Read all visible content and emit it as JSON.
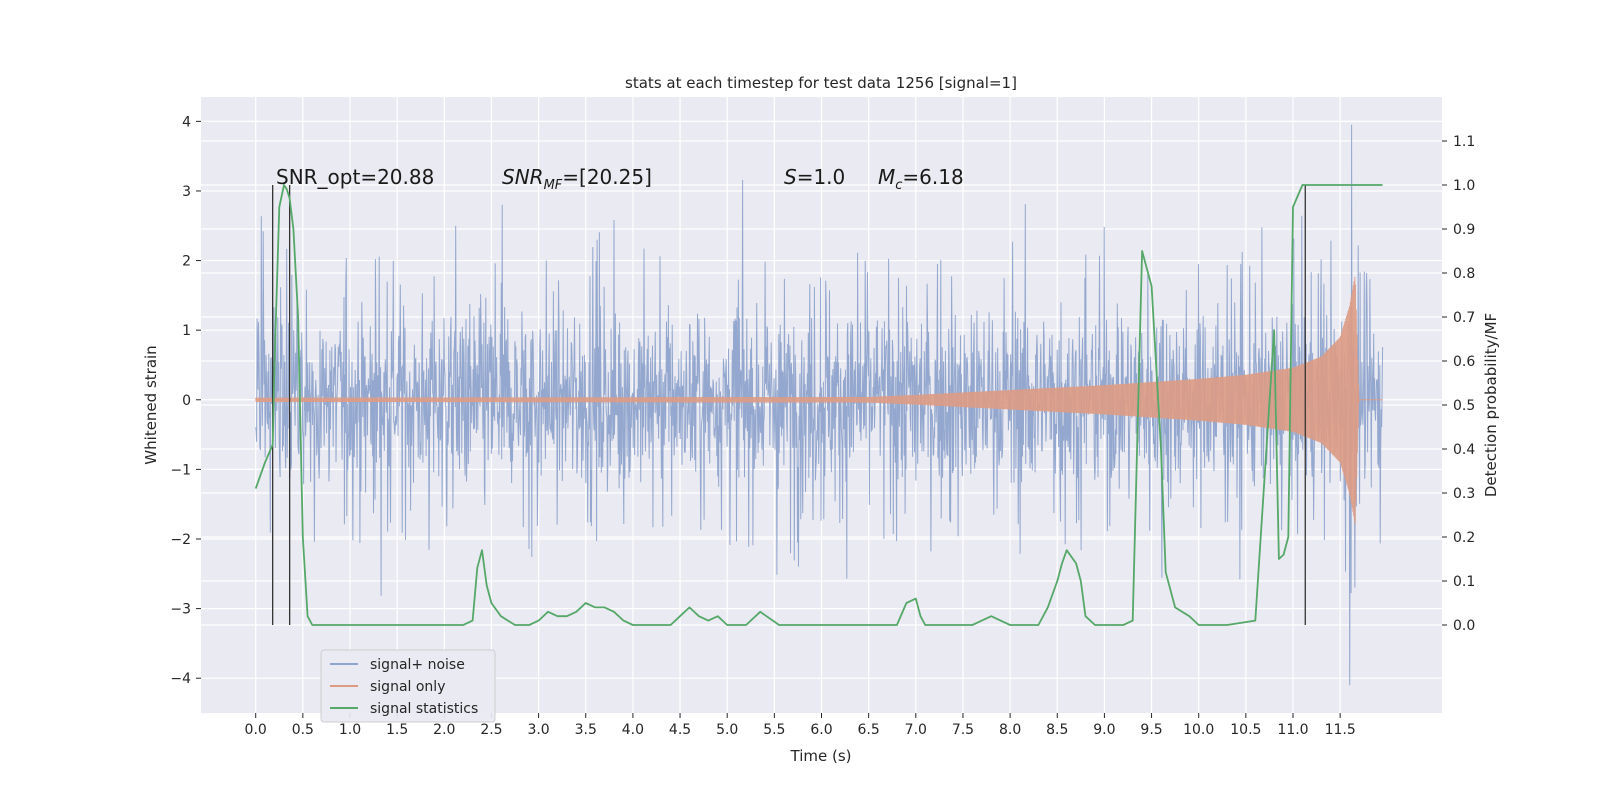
{
  "chart_data": {
    "type": "line",
    "title": "stats at each timestep for test data 1256 [signal=1]",
    "xlabel": "Time (s)",
    "ylabel": "Whitened strain",
    "y2label": "Detection probability/MF",
    "xlim": [
      -0.58,
      12.58
    ],
    "ylim": [
      -4.5,
      4.35
    ],
    "y2lim": [
      -0.2,
      1.2
    ],
    "xticks": [
      "0.0",
      "0.5",
      "1.0",
      "1.5",
      "2.0",
      "2.5",
      "3.0",
      "3.5",
      "4.0",
      "4.5",
      "5.0",
      "5.5",
      "6.0",
      "6.5",
      "7.0",
      "7.5",
      "8.0",
      "8.5",
      "9.0",
      "9.5",
      "10.0",
      "10.5",
      "11.0",
      "11.5"
    ],
    "xtick_values": [
      0,
      0.5,
      1,
      1.5,
      2,
      2.5,
      3,
      3.5,
      4,
      4.5,
      5,
      5.5,
      6,
      6.5,
      7,
      7.5,
      8,
      8.5,
      9,
      9.5,
      10,
      10.5,
      11,
      11.5
    ],
    "yticks": [
      "−4",
      "−3",
      "−2",
      "−1",
      "0",
      "1",
      "2",
      "3",
      "4"
    ],
    "ytick_values": [
      -4,
      -3,
      -2,
      -1,
      0,
      1,
      2,
      3,
      4
    ],
    "y2ticks": [
      "0.0",
      "0.1",
      "0.2",
      "0.3",
      "0.4",
      "0.5",
      "0.6",
      "0.7",
      "0.8",
      "0.9",
      "1.0",
      "1.1"
    ],
    "y2tick_values": [
      0,
      0.1,
      0.2,
      0.3,
      0.4,
      0.5,
      0.6,
      0.7,
      0.8,
      0.9,
      1.0,
      1.1
    ],
    "grid": true,
    "legend_position": "lower-left",
    "annotations": {
      "snr_opt": "SNR_opt=20.88",
      "snr_mf": "SNR",
      "snr_mf_sub": "MF",
      "snr_mf_value": "=[20.25]",
      "s_label": "S",
      "s_value": "=1.0",
      "mc_label": "M",
      "mc_sub": "c",
      "mc_value": "=6.18"
    },
    "series": [
      {
        "name": "signal+ noise",
        "color": "#8fa4cc",
        "axis": "left",
        "x_range": [
          0.0,
          11.95
        ],
        "note_values": "dense noise; typical band -2.0 to 1.8, peaks to 3.95 near 11.62 and -4.1 near 11.6"
      },
      {
        "name": "signal only",
        "color": "#dd9b84",
        "axis": "left",
        "envelope": {
          "t": [
            0.0,
            6.5,
            7.0,
            8.0,
            9.0,
            10.0,
            10.5,
            11.0,
            11.3,
            11.5,
            11.6,
            11.66,
            11.7,
            11.95
          ],
          "amp": [
            0.03,
            0.04,
            0.07,
            0.14,
            0.21,
            0.3,
            0.36,
            0.46,
            0.62,
            0.9,
            1.35,
            1.8,
            0.0,
            0.0
          ]
        }
      },
      {
        "name": "signal statistics",
        "color": "#55a868",
        "axis": "right",
        "x": [
          0.0,
          0.1,
          0.18,
          0.2,
          0.25,
          0.3,
          0.33,
          0.36,
          0.4,
          0.45,
          0.5,
          0.55,
          0.6,
          0.65,
          0.75,
          1.0,
          1.5,
          2.0,
          2.2,
          2.3,
          2.35,
          2.4,
          2.45,
          2.5,
          2.6,
          2.75,
          2.9,
          3.0,
          3.1,
          3.2,
          3.3,
          3.4,
          3.5,
          3.6,
          3.7,
          3.8,
          3.9,
          4.0,
          4.2,
          4.4,
          4.5,
          4.6,
          4.7,
          4.8,
          4.9,
          5.0,
          5.1,
          5.2,
          5.35,
          5.55,
          5.7,
          5.8,
          6.0,
          6.3,
          6.8,
          6.9,
          7.0,
          7.05,
          7.1,
          7.15,
          7.3,
          7.6,
          7.7,
          7.8,
          8.0,
          8.3,
          8.4,
          8.5,
          8.55,
          8.6,
          8.7,
          8.75,
          8.8,
          8.9,
          9.0,
          9.1,
          9.2,
          9.3,
          9.4,
          9.5,
          9.6,
          9.65,
          9.75,
          9.9,
          10.0,
          10.1,
          10.3,
          10.6,
          10.8,
          10.85,
          10.9,
          10.95,
          11.0,
          11.1,
          11.25,
          11.3,
          11.4,
          11.5,
          11.95
        ],
        "y": [
          0.31,
          0.37,
          0.41,
          0.6,
          0.95,
          1.0,
          0.99,
          0.97,
          0.9,
          0.7,
          0.2,
          0.02,
          0.0,
          0.0,
          0.0,
          0.0,
          0.0,
          0.0,
          0.0,
          0.01,
          0.13,
          0.17,
          0.09,
          0.05,
          0.02,
          0.0,
          0.0,
          0.01,
          0.03,
          0.02,
          0.02,
          0.03,
          0.05,
          0.04,
          0.04,
          0.03,
          0.01,
          0.0,
          0.0,
          0.0,
          0.02,
          0.04,
          0.02,
          0.01,
          0.02,
          0.0,
          0.0,
          0.0,
          0.03,
          0.0,
          0.0,
          0.0,
          0.0,
          0.0,
          0.0,
          0.05,
          0.06,
          0.02,
          0.0,
          0.0,
          0.0,
          0.0,
          0.01,
          0.02,
          0.0,
          0.0,
          0.04,
          0.1,
          0.14,
          0.17,
          0.14,
          0.1,
          0.02,
          0.0,
          0.0,
          0.0,
          0.0,
          0.01,
          0.85,
          0.77,
          0.4,
          0.12,
          0.04,
          0.02,
          0.0,
          0.0,
          0.0,
          0.01,
          0.67,
          0.15,
          0.16,
          0.2,
          0.95,
          1.0,
          1.0,
          1.0,
          1.0,
          1.0,
          1.0
        ]
      }
    ],
    "vlines": [
      {
        "x": 0.18,
        "ymin": 0.0,
        "ymax": 1.0,
        "color": "#333333"
      },
      {
        "x": 0.36,
        "ymin": 0.0,
        "ymax": 1.0,
        "color": "#333333"
      },
      {
        "x": 11.13,
        "ymin": 0.0,
        "ymax": 1.0,
        "color": "#333333"
      }
    ]
  }
}
